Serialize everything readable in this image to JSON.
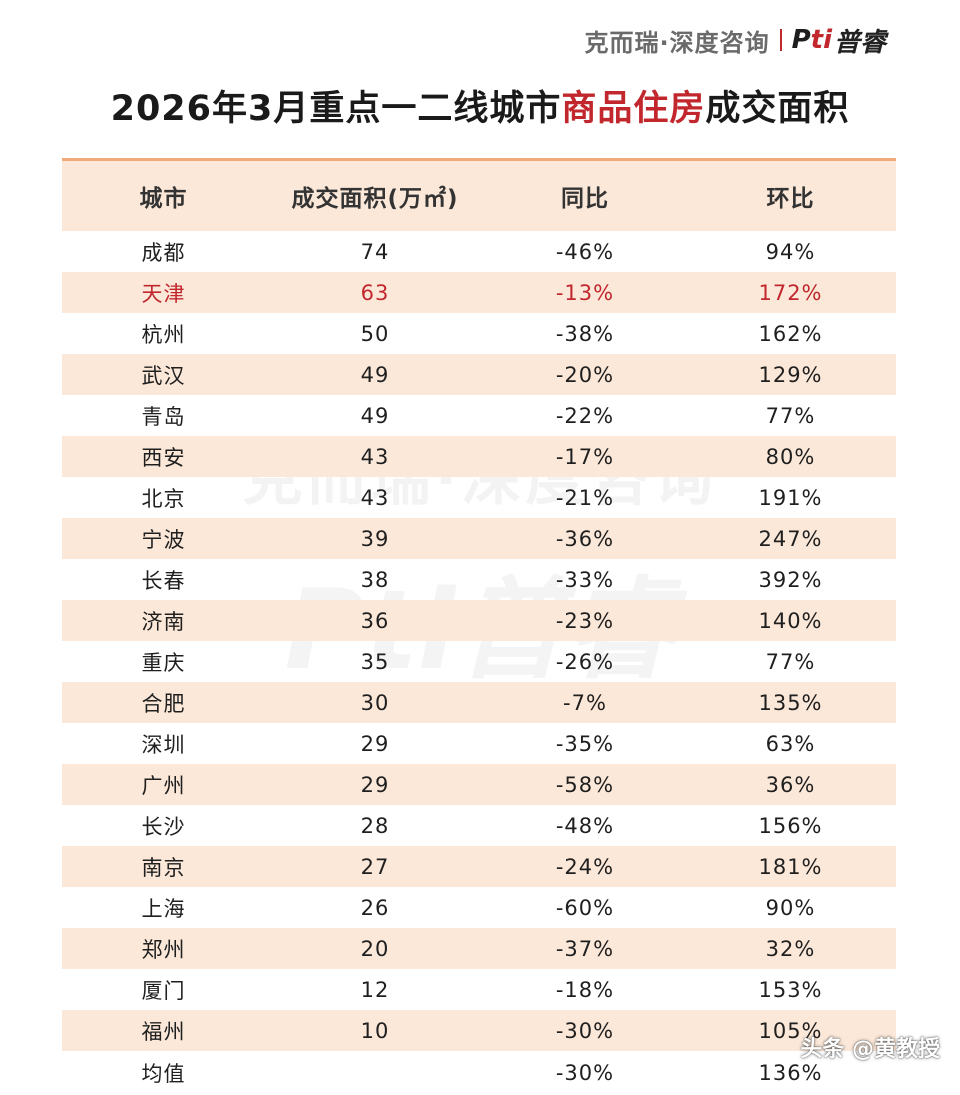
{
  "brand": {
    "name": "克而瑞·深度咨询",
    "logo_mark": "P",
    "logo_dot": "ti",
    "logo_text": "普睿"
  },
  "title": {
    "prefix": "2026年3月重点一二线城市",
    "highlight": "商品住房",
    "suffix": "成交面积"
  },
  "table": {
    "headers": [
      "城市",
      "成交面积(万㎡)",
      "同比",
      "环比"
    ],
    "rows": [
      {
        "city": "成都",
        "area": "74",
        "yoy": "-46%",
        "mom": "94%"
      },
      {
        "city": "天津",
        "area": "63",
        "yoy": "-13%",
        "mom": "172%"
      },
      {
        "city": "杭州",
        "area": "50",
        "yoy": "-38%",
        "mom": "162%"
      },
      {
        "city": "武汉",
        "area": "49",
        "yoy": "-20%",
        "mom": "129%"
      },
      {
        "city": "青岛",
        "area": "49",
        "yoy": "-22%",
        "mom": "77%"
      },
      {
        "city": "西安",
        "area": "43",
        "yoy": "-17%",
        "mom": "80%"
      },
      {
        "city": "北京",
        "area": "43",
        "yoy": "-21%",
        "mom": "191%"
      },
      {
        "city": "宁波",
        "area": "39",
        "yoy": "-36%",
        "mom": "247%"
      },
      {
        "city": "长春",
        "area": "38",
        "yoy": "-33%",
        "mom": "392%"
      },
      {
        "city": "济南",
        "area": "36",
        "yoy": "-23%",
        "mom": "140%"
      },
      {
        "city": "重庆",
        "area": "35",
        "yoy": "-26%",
        "mom": "77%"
      },
      {
        "city": "合肥",
        "area": "30",
        "yoy": "-7%",
        "mom": "135%"
      },
      {
        "city": "深圳",
        "area": "29",
        "yoy": "-35%",
        "mom": "63%"
      },
      {
        "city": "广州",
        "area": "29",
        "yoy": "-58%",
        "mom": "36%"
      },
      {
        "city": "长沙",
        "area": "28",
        "yoy": "-48%",
        "mom": "156%"
      },
      {
        "city": "南京",
        "area": "27",
        "yoy": "-24%",
        "mom": "181%"
      },
      {
        "city": "上海",
        "area": "26",
        "yoy": "-60%",
        "mom": "90%"
      },
      {
        "city": "郑州",
        "area": "20",
        "yoy": "-37%",
        "mom": "32%"
      },
      {
        "city": "厦门",
        "area": "12",
        "yoy": "-18%",
        "mom": "153%"
      },
      {
        "city": "福州",
        "area": "10",
        "yoy": "-30%",
        "mom": "105%"
      }
    ],
    "highlight_city": "天津",
    "footer": {
      "label": "均值",
      "area": "",
      "yoy": "-30%",
      "mom": "136%"
    }
  },
  "watermark": {
    "text": "克而瑞·深度咨询",
    "logo": "Pti普睿"
  },
  "platform_tag": "头条 @黄教授",
  "colors": {
    "accent": "#c1272d",
    "row_shade": "#fbe8d9",
    "top_rule": "#f0a978"
  }
}
